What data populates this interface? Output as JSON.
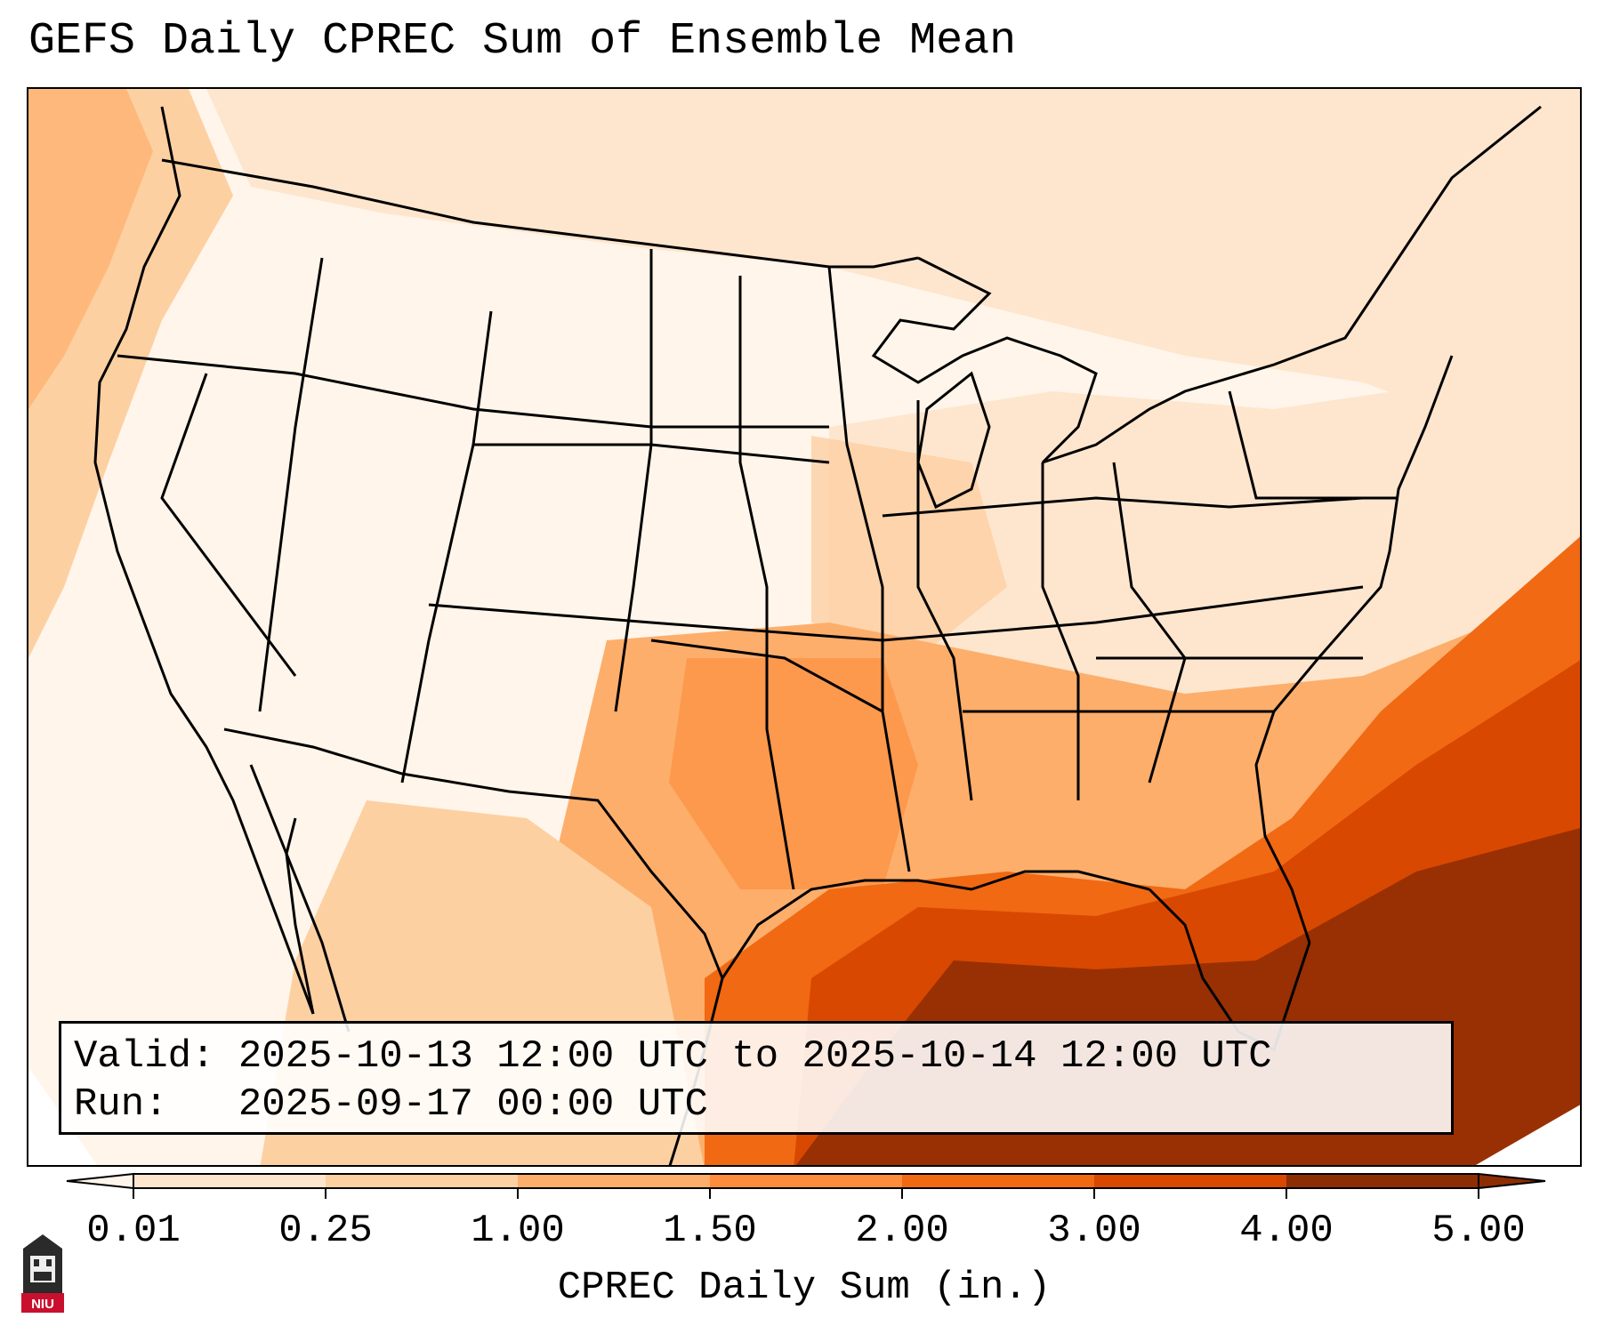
{
  "title": "GEFS Daily CPREC Sum of Ensemble Mean",
  "info": {
    "valid_label": "Valid:",
    "valid_value": "2025-10-13 12:00 UTC to 2025-10-14 12:00 UTC",
    "run_label": "Run:",
    "run_value": "2025-09-17 00:00 UTC"
  },
  "colorbar": {
    "label": "CPREC Daily Sum (in.)",
    "ticks": [
      "0.01",
      "0.25",
      "1.00",
      "1.50",
      "2.00",
      "3.00",
      "4.00",
      "5.00"
    ],
    "colors": [
      "#fff5ea",
      "#fee6ce",
      "#fdd0a2",
      "#fdae6b",
      "#fd8d3c",
      "#f16913",
      "#d94801",
      "#8c2d04"
    ],
    "extend": "both"
  },
  "logo": {
    "text": "NIU",
    "color": "#c8102e"
  },
  "map": {
    "projection": "lambert-conformal",
    "region": "Continental United States, northern Mexico, Gulf of Mexico",
    "colors": {
      "ocean_heavy": "#d94801",
      "gulf_max": "#8c2d04",
      "southeast": "#f16913",
      "moderate": "#fd8d3c",
      "light": "#fdd0a2",
      "trace": "#fee6ce",
      "none": "#fff5ea",
      "border": "#000000"
    }
  }
}
